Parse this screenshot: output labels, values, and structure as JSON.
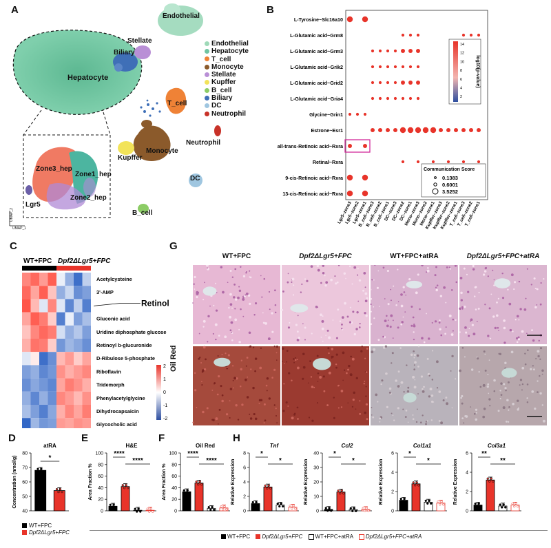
{
  "panels": {
    "A": "A",
    "B": "B",
    "C": "C",
    "D": "D",
    "E": "E",
    "F": "F",
    "G": "G",
    "H": "H"
  },
  "umap": {
    "clusters": [
      "Endothelial",
      "Hepatocyte",
      "T_cell",
      "Monocyte",
      "Stellate",
      "Kupffer",
      "B_cell",
      "Biliary",
      "DC",
      "Neutrophil"
    ],
    "cluster_colors": [
      "#9fd9b8",
      "#6fc4a2",
      "#ef8236",
      "#8b5a2b",
      "#b98fd6",
      "#f2e35a",
      "#8ccc66",
      "#3f6fb7",
      "#9fc6e0",
      "#c83228"
    ],
    "labels": {
      "endothelial": "Endothelial",
      "stellate": "Stellate",
      "biliary": "Biliary",
      "hepatocyte": "Hepatocyte",
      "tcell": "T_cell",
      "neutrophil": "Neutrophil",
      "monocyte": "Monocyte",
      "kupffer": "Kupffer",
      "dc": "DC",
      "bcell": "B_cell"
    },
    "zoom_labels": {
      "zone3": "Zone3_hep",
      "zone1": "Zone1_hep",
      "zone2": "Zone2_hep",
      "lgr5": "Lgr5"
    },
    "axis": {
      "y": "UMAP_2",
      "x": "UMAP_1"
    }
  },
  "dotplot": {
    "rows": [
      "L-Tyrosine~Slc16a10",
      "L-Glutamic acid~Grm8",
      "L-Glutamic acid~Grm3",
      "L-Glutamic acid~Grik2",
      "L-Glutamic acid~Grid2",
      "L-Glutamic acid~Gria4",
      "Glycine~Grin1",
      "Estrone~Esr1",
      "all-trans-Retinoic acid~Rxra",
      "Retinal~Rxra",
      "9-cis-Retinoic acid~Rxra",
      "13-cis-Retinoic acid~Rxra"
    ],
    "cols": [
      "Lgr5–zone3",
      "Lgr5–zone2",
      "Lgr5–zone1",
      "B_cell–zone3",
      "B_cell–zone2",
      "B_cell–zone1",
      "DC–zone3",
      "DC–zone2",
      "DC–zone1",
      "Mono–zone3",
      "Mono–zone2",
      "Mono–zone1",
      "Kupffer–zone3",
      "Kupffer–zone2",
      "Kupffer–zone1",
      "T_cell–zone3",
      "T_cell–zone2",
      "T_cell–zone1"
    ],
    "colorbar": {
      "title": "log10(p-value)",
      "ticks": [
        "14",
        "12",
        "10",
        "8",
        "6",
        "4",
        "2"
      ]
    },
    "size_legend": {
      "title": "Communication Score",
      "values": [
        "0.1383",
        "0.6001",
        "3.5252"
      ]
    },
    "points": [
      {
        "r": 0,
        "cells": [
          [
            0,
            3
          ],
          [
            2,
            3
          ]
        ]
      },
      {
        "r": 1,
        "cells": [
          [
            7,
            1
          ],
          [
            8,
            1
          ],
          [
            9,
            1
          ],
          [
            15,
            1
          ],
          [
            16,
            1
          ],
          [
            17,
            1
          ]
        ]
      },
      {
        "r": 2,
        "cells": [
          [
            3,
            1
          ],
          [
            4,
            1
          ],
          [
            5,
            1
          ],
          [
            6,
            1
          ],
          [
            7,
            2
          ],
          [
            8,
            2
          ],
          [
            9,
            2
          ],
          [
            15,
            2
          ],
          [
            16,
            2
          ],
          [
            17,
            2
          ]
        ]
      },
      {
        "r": 3,
        "cells": [
          [
            3,
            1
          ],
          [
            4,
            1
          ],
          [
            5,
            1
          ],
          [
            6,
            1
          ],
          [
            7,
            1
          ],
          [
            8,
            1
          ],
          [
            9,
            1
          ],
          [
            15,
            1
          ],
          [
            16,
            1
          ],
          [
            17,
            1
          ]
        ]
      },
      {
        "r": 4,
        "cells": [
          [
            3,
            1
          ],
          [
            4,
            1
          ],
          [
            5,
            1
          ],
          [
            6,
            1
          ],
          [
            7,
            2
          ],
          [
            8,
            2
          ],
          [
            9,
            2
          ],
          [
            15,
            2
          ],
          [
            16,
            2
          ],
          [
            17,
            2
          ]
        ]
      },
      {
        "r": 5,
        "cells": [
          [
            3,
            1
          ],
          [
            4,
            1
          ],
          [
            5,
            1
          ],
          [
            6,
            1
          ],
          [
            7,
            1
          ],
          [
            8,
            1
          ],
          [
            9,
            1
          ],
          [
            15,
            1
          ],
          [
            16,
            1
          ],
          [
            17,
            1
          ]
        ]
      },
      {
        "r": 6,
        "cells": [
          [
            0,
            1
          ],
          [
            1,
            1
          ],
          [
            2,
            1
          ]
        ]
      },
      {
        "r": 7,
        "cells": [
          [
            3,
            2
          ],
          [
            4,
            2
          ],
          [
            5,
            2
          ],
          [
            6,
            2
          ],
          [
            7,
            3
          ],
          [
            8,
            3
          ],
          [
            9,
            3
          ],
          [
            10,
            3
          ],
          [
            11,
            3
          ],
          [
            12,
            2
          ],
          [
            13,
            2
          ],
          [
            14,
            2
          ],
          [
            15,
            2
          ],
          [
            16,
            2
          ],
          [
            17,
            2
          ]
        ]
      },
      {
        "r": 8,
        "cells": [
          [
            0,
            2
          ],
          [
            2,
            2
          ]
        ]
      },
      {
        "r": 9,
        "cells": [
          [
            7,
            1
          ],
          [
            9,
            1
          ],
          [
            11,
            1
          ],
          [
            13,
            1
          ],
          [
            15,
            1
          ],
          [
            17,
            1
          ]
        ]
      },
      {
        "r": 10,
        "cells": [
          [
            0,
            3
          ],
          [
            2,
            3
          ]
        ]
      },
      {
        "r": 11,
        "cells": [
          [
            0,
            3
          ],
          [
            2,
            3
          ]
        ]
      }
    ]
  },
  "heatmap": {
    "groups": [
      "WT+FPC",
      "Dpf2ΔLgr5+FPC"
    ],
    "rows": [
      "Acetylcysteine",
      "3'-AMP",
      "Gluconic acid",
      "Uridine diphosphate glucose",
      "Retinoyl b-glucuronide",
      "D-Ribulose 5-phosphate",
      "Riboflavin",
      "Tridemorph",
      "Phenylacetylglycine",
      "Dihydrocapsaicin",
      "Glycocholic acid"
    ],
    "highlight": "Retinol",
    "colorbar_ticks": [
      "2",
      "1",
      "0",
      "-1",
      "-2"
    ],
    "values": [
      [
        1.2,
        1.5,
        1.0,
        1.6,
        -0.2,
        -1.0,
        -1.8,
        -0.6
      ],
      [
        1.5,
        0.9,
        1.6,
        0.6,
        -1.0,
        -0.5,
        -1.4,
        -1.2
      ],
      [
        1.7,
        0.7,
        -0.3,
        1.2,
        -0.3,
        -1.5,
        -0.6,
        -1.6
      ],
      [
        0.9,
        1.6,
        1.3,
        0.5,
        -1.6,
        -0.2,
        -1.2,
        -0.8
      ],
      [
        0.6,
        1.2,
        1.5,
        1.3,
        -0.4,
        -1.0,
        -0.7,
        -1.2
      ],
      [
        0.8,
        1.4,
        1.3,
        0.5,
        -1.3,
        -0.9,
        -1.1,
        -1.4
      ],
      [
        -0.3,
        0.2,
        -1.8,
        -1.4,
        0.7,
        1.0,
        0.5,
        0.9
      ],
      [
        -1.2,
        -1.0,
        -1.5,
        -1.3,
        1.1,
        0.8,
        1.0,
        1.2
      ],
      [
        -1.4,
        -1.1,
        -1.3,
        -1.5,
        0.9,
        1.3,
        1.1,
        0.8
      ],
      [
        -1.0,
        -1.5,
        -1.0,
        -1.4,
        1.2,
        1.0,
        0.7,
        1.1
      ],
      [
        -0.8,
        -1.2,
        -1.6,
        -1.1,
        0.8,
        1.2,
        0.9,
        1.3
      ],
      [
        -1.9,
        -0.9,
        -1.3,
        -1.2,
        1.0,
        0.9,
        1.1,
        1.0
      ]
    ]
  },
  "histology": {
    "columns": [
      "WT+FPC",
      "Dpf2ΔLgr5+FPC",
      "WT+FPC+atRA",
      "Dpf2ΔLgr5+FPC+atRA"
    ],
    "row_label": "Oil Red"
  },
  "charts": {
    "D": {
      "title": "atRA",
      "ylabel": "Concentration (nmol/g)",
      "ylim": [
        40,
        80
      ],
      "ticks": [
        "80",
        "70",
        "60",
        "50",
        "40"
      ],
      "bars": [
        {
          "value": 68,
          "color": "#000000"
        },
        {
          "value": 54,
          "color": "#e8342a"
        }
      ],
      "sig": [
        {
          "text": "*",
          "a": 0,
          "b": 1
        }
      ]
    },
    "E": {
      "title": "H&E",
      "ylabel": "Area Fraction %",
      "ylim": [
        0,
        100
      ],
      "ticks": [
        "100",
        "80",
        "60",
        "40",
        "20",
        "0"
      ],
      "bars": [
        {
          "value": 8,
          "color": "#000000"
        },
        {
          "value": 42,
          "color": "#e8342a"
        },
        {
          "value": 1,
          "color": "#ffffff"
        },
        {
          "value": 1,
          "color": "#ffffff",
          "edge": "#e8342a"
        }
      ],
      "sig": [
        {
          "text": "****",
          "a": 0,
          "b": 1
        },
        {
          "text": "****",
          "a": 1,
          "b": 3
        }
      ]
    },
    "F": {
      "title": "Oil Red",
      "ylabel": "Area Fraction %",
      "ylim": [
        0,
        100
      ],
      "ticks": [
        "100",
        "80",
        "60",
        "40",
        "20",
        "0"
      ],
      "bars": [
        {
          "value": 33,
          "color": "#000000"
        },
        {
          "value": 48,
          "color": "#e8342a"
        },
        {
          "value": 4,
          "color": "#ffffff"
        },
        {
          "value": 5,
          "color": "#ffffff",
          "edge": "#e8342a"
        }
      ],
      "sig": [
        {
          "text": "****",
          "a": 0,
          "b": 1
        },
        {
          "text": "****",
          "a": 1,
          "b": 3
        }
      ]
    },
    "H1": {
      "title": "Tnf",
      "ylabel": "Relative Expression",
      "ylim": [
        0,
        8
      ],
      "ticks": [
        "8",
        "6",
        "4",
        "2",
        "0"
      ],
      "bars": [
        {
          "value": 1,
          "color": "#000000"
        },
        {
          "value": 3.3,
          "color": "#e8342a"
        },
        {
          "value": 0.8,
          "color": "#ffffff"
        },
        {
          "value": 0.5,
          "color": "#ffffff",
          "edge": "#e8342a"
        }
      ],
      "sig": [
        {
          "text": "*",
          "a": 0,
          "b": 1
        },
        {
          "text": "*",
          "a": 1,
          "b": 3
        }
      ]
    },
    "H2": {
      "title": "Ccl2",
      "ylabel": "Relative Expression",
      "ylim": [
        0,
        40
      ],
      "ticks": [
        "40",
        "30",
        "20",
        "10",
        "0"
      ],
      "bars": [
        {
          "value": 1,
          "color": "#000000"
        },
        {
          "value": 13,
          "color": "#e8342a"
        },
        {
          "value": 0.8,
          "color": "#ffffff"
        },
        {
          "value": 0.9,
          "color": "#ffffff",
          "edge": "#e8342a"
        }
      ],
      "sig": [
        {
          "text": "*",
          "a": 0,
          "b": 1
        },
        {
          "text": "*",
          "a": 1,
          "b": 3
        }
      ]
    },
    "H3": {
      "title": "Col1a1",
      "ylabel": "Relative Expression",
      "ylim": [
        0,
        6
      ],
      "ticks": [
        "6",
        "4",
        "2",
        "0"
      ],
      "bars": [
        {
          "value": 1.1,
          "color": "#000000"
        },
        {
          "value": 2.8,
          "color": "#e8342a"
        },
        {
          "value": 0.9,
          "color": "#ffffff"
        },
        {
          "value": 0.8,
          "color": "#ffffff",
          "edge": "#e8342a"
        }
      ],
      "sig": [
        {
          "text": "*",
          "a": 0,
          "b": 1
        },
        {
          "text": "*",
          "a": 1,
          "b": 3
        }
      ]
    },
    "H4": {
      "title": "Col3a1",
      "ylabel": "Relative Expression",
      "ylim": [
        0,
        6
      ],
      "ticks": [
        "6",
        "4",
        "2",
        "0"
      ],
      "bars": [
        {
          "value": 0.6,
          "color": "#000000"
        },
        {
          "value": 3.2,
          "color": "#e8342a"
        },
        {
          "value": 0.5,
          "color": "#ffffff"
        },
        {
          "value": 0.6,
          "color": "#ffffff",
          "edge": "#e8342a"
        }
      ],
      "sig": [
        {
          "text": "**",
          "a": 0,
          "b": 1
        },
        {
          "text": "**",
          "a": 1,
          "b": 3
        }
      ]
    }
  },
  "legend_d": [
    "WT+FPC",
    "Dpf2ΔLgr5+FPC"
  ],
  "legend_bottom": [
    "WT+FPC",
    "Dpf2ΔLgr5+FPC",
    "WT+FPC+atRA",
    "Dpf2ΔLgr5+FPC+atRA"
  ],
  "chart_data": [
    {
      "type": "bar",
      "title": "atRA",
      "categories": [
        "WT+FPC",
        "Dpf2ΔLgr5+FPC"
      ],
      "values": [
        68,
        54
      ],
      "ylabel": "Concentration (nmol/g)",
      "ylim": [
        40,
        80
      ]
    },
    {
      "type": "bar",
      "title": "H&E",
      "categories": [
        "WT+FPC",
        "Dpf2ΔLgr5+FPC",
        "WT+FPC+atRA",
        "Dpf2ΔLgr5+FPC+atRA"
      ],
      "values": [
        8,
        42,
        1,
        1
      ],
      "ylabel": "Area Fraction %",
      "ylim": [
        0,
        100
      ]
    },
    {
      "type": "bar",
      "title": "Oil Red",
      "categories": [
        "WT+FPC",
        "Dpf2ΔLgr5+FPC",
        "WT+FPC+atRA",
        "Dpf2ΔLgr5+FPC+atRA"
      ],
      "values": [
        33,
        48,
        4,
        5
      ],
      "ylabel": "Area Fraction %",
      "ylim": [
        0,
        100
      ]
    },
    {
      "type": "bar",
      "title": "Tnf",
      "categories": [
        "WT+FPC",
        "Dpf2ΔLgr5+FPC",
        "WT+FPC+atRA",
        "Dpf2ΔLgr5+FPC+atRA"
      ],
      "values": [
        1,
        3.3,
        0.8,
        0.5
      ],
      "ylabel": "Relative Expression",
      "ylim": [
        0,
        8
      ]
    },
    {
      "type": "bar",
      "title": "Ccl2",
      "categories": [
        "WT+FPC",
        "Dpf2ΔLgr5+FPC",
        "WT+FPC+atRA",
        "Dpf2ΔLgr5+FPC+atRA"
      ],
      "values": [
        1,
        13,
        0.8,
        0.9
      ],
      "ylabel": "Relative Expression",
      "ylim": [
        0,
        40
      ]
    },
    {
      "type": "bar",
      "title": "Col1a1",
      "categories": [
        "WT+FPC",
        "Dpf2ΔLgr5+FPC",
        "WT+FPC+atRA",
        "Dpf2ΔLgr5+FPC+atRA"
      ],
      "values": [
        1.1,
        2.8,
        0.9,
        0.8
      ],
      "ylabel": "Relative Expression",
      "ylim": [
        0,
        6
      ]
    },
    {
      "type": "bar",
      "title": "Col3a1",
      "categories": [
        "WT+FPC",
        "Dpf2ΔLgr5+FPC",
        "WT+FPC+atRA",
        "Dpf2ΔLgr5+FPC+atRA"
      ],
      "values": [
        0.6,
        3.2,
        0.5,
        0.6
      ],
      "ylabel": "Relative Expression",
      "ylim": [
        0,
        6
      ]
    }
  ]
}
